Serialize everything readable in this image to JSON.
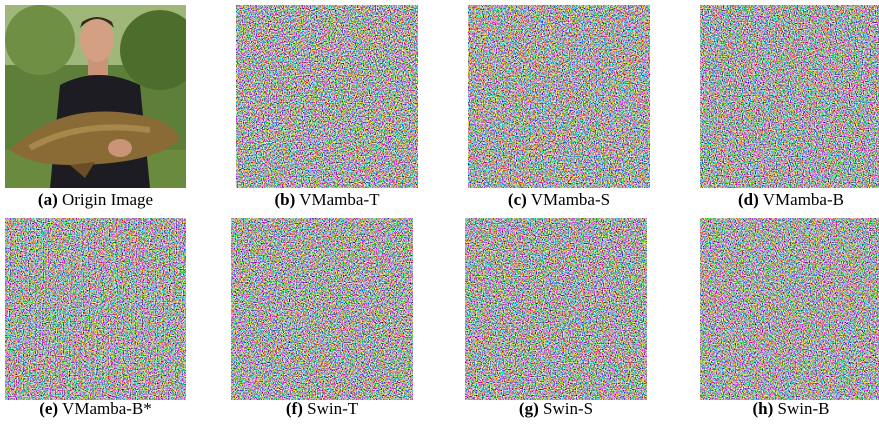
{
  "panels": [
    {
      "label": "(a)",
      "caption": "Origin Image"
    },
    {
      "label": "(b)",
      "caption": "VMamba-T"
    },
    {
      "label": "(c)",
      "caption": "VMamba-S"
    },
    {
      "label": "(d)",
      "caption": "VMamba-B"
    },
    {
      "label": "(e)",
      "caption": "VMamba-B*"
    },
    {
      "label": "(f)",
      "caption": "Swin-T"
    },
    {
      "label": "(g)",
      "caption": "Swin-S"
    },
    {
      "label": "(h)",
      "caption": "Swin-B"
    }
  ]
}
